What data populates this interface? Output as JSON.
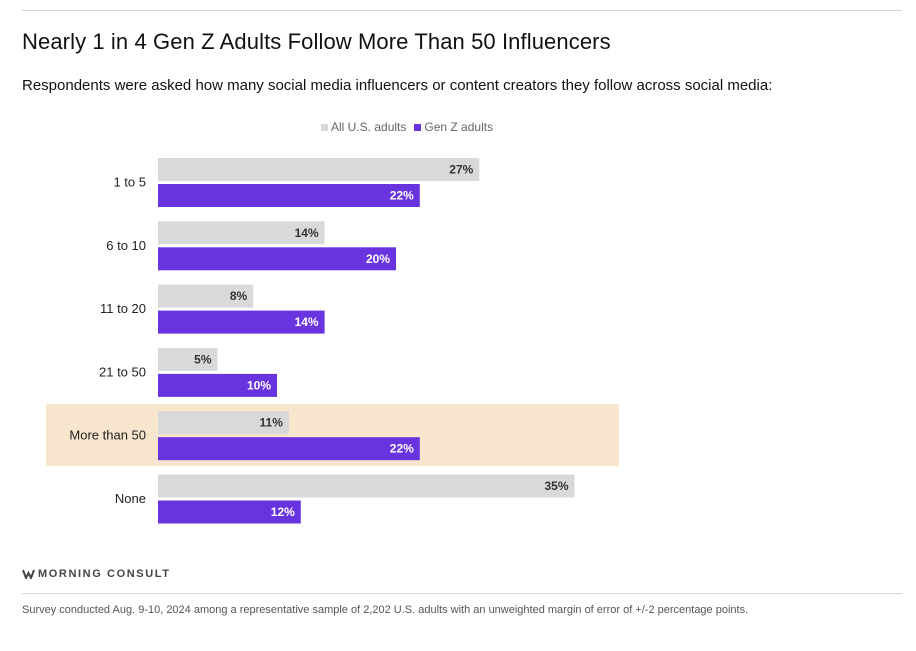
{
  "title": "Nearly 1 in 4 Gen Z Adults Follow More Than 50 Influencers",
  "subtitle": "Respondents were asked how many social media influencers or content creators they follow across social media:",
  "legend": [
    {
      "label": "All U.S. adults",
      "color": "#d9d9d9"
    },
    {
      "label": "Gen Z adults",
      "color": "#6a33e0"
    }
  ],
  "brand": {
    "name": "MORNING CONSULT",
    "icon": "morning-consult-logo-icon"
  },
  "footnote": "Survey conducted Aug. 9-10, 2024 among a representative sample of 2,202 U.S. adults with an unweighted margin of error of +/-2 percentage points.",
  "colors": {
    "all_adults": "#d9d9d9",
    "gen_z": "#6a33e0",
    "highlight": "#f7e6cd"
  },
  "chart_data": {
    "type": "bar",
    "orientation": "horizontal",
    "categories": [
      "1 to 5",
      "6 to 10",
      "11 to 20",
      "21 to 50",
      "More than 50",
      "None"
    ],
    "series": [
      {
        "name": "All U.S. adults",
        "values": [
          27,
          14,
          8,
          5,
          11,
          35
        ],
        "labels": [
          "27%",
          "14%",
          "8%",
          "5%",
          "11%",
          "35%"
        ]
      },
      {
        "name": "Gen Z adults",
        "values": [
          22,
          20,
          14,
          10,
          22,
          12
        ],
        "labels": [
          "22%",
          "20%",
          "14%",
          "10%",
          "22%",
          "12%"
        ]
      }
    ],
    "highlighted_category": "More than 50",
    "legend_position": "top",
    "grid": false,
    "xlim": [
      0,
      40
    ]
  }
}
